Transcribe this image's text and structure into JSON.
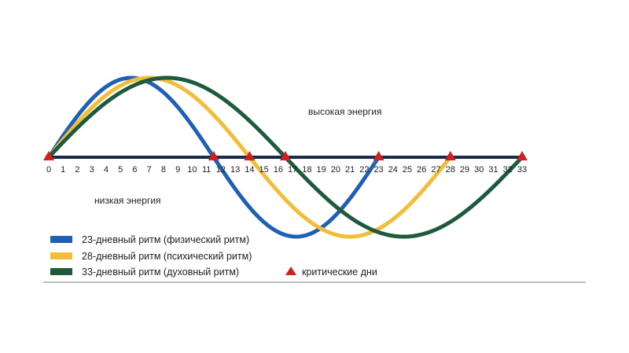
{
  "chart_data": {
    "type": "line",
    "xlim": [
      0,
      33
    ],
    "ylim": [
      -1,
      1
    ],
    "grid": false,
    "legend_position": "bottom-left",
    "x_ticks": [
      0,
      1,
      2,
      3,
      4,
      5,
      6,
      7,
      8,
      9,
      10,
      11,
      12,
      13,
      14,
      15,
      16,
      17,
      18,
      19,
      20,
      21,
      22,
      23,
      24,
      25,
      26,
      27,
      28,
      29,
      30,
      31,
      32,
      33
    ],
    "annotations": {
      "high": "высокая энергия",
      "low": "низкая энергия"
    },
    "series": [
      {
        "name": "23-дневный ритм (физический ритм)",
        "period": 23,
        "color": "#1f5fb4"
      },
      {
        "name": "28-дневный ритм (психический ритм)",
        "period": 28,
        "color": "#f2bd3a"
      },
      {
        "name": "33-дневный ритм (духовный ритм)",
        "period": 33,
        "color": "#1e5a3c"
      }
    ],
    "critical_days": {
      "label": "критические дни",
      "x": [
        0,
        11.5,
        14,
        16.5,
        23,
        28,
        33
      ],
      "color": "#d02020"
    }
  }
}
